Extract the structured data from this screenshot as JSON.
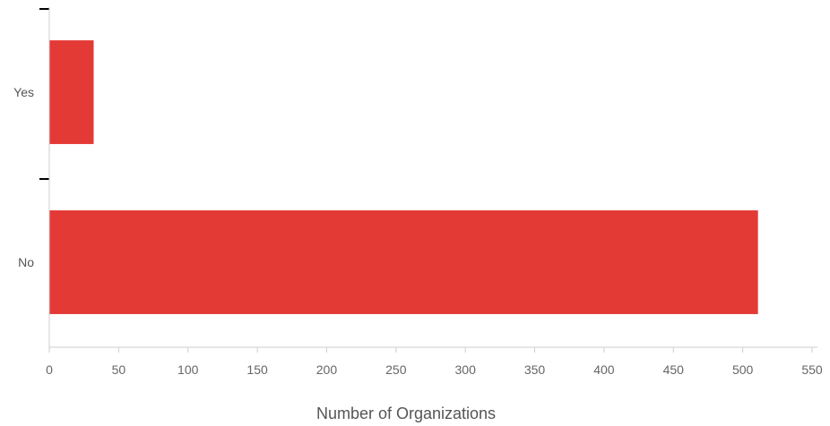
{
  "chart_data": {
    "type": "bar",
    "orientation": "horizontal",
    "categories": [
      "Yes",
      "No"
    ],
    "values": [
      32,
      511
    ],
    "title": "",
    "xlabel": "Number of Organizations",
    "ylabel": "",
    "xlim": [
      0,
      550
    ],
    "xticks": [
      0,
      50,
      100,
      150,
      200,
      250,
      300,
      350,
      400,
      450,
      500,
      550
    ],
    "grid": false,
    "bar_color": "#e43a36",
    "axis_color": "#cccccc",
    "tick_color": "#000000"
  }
}
